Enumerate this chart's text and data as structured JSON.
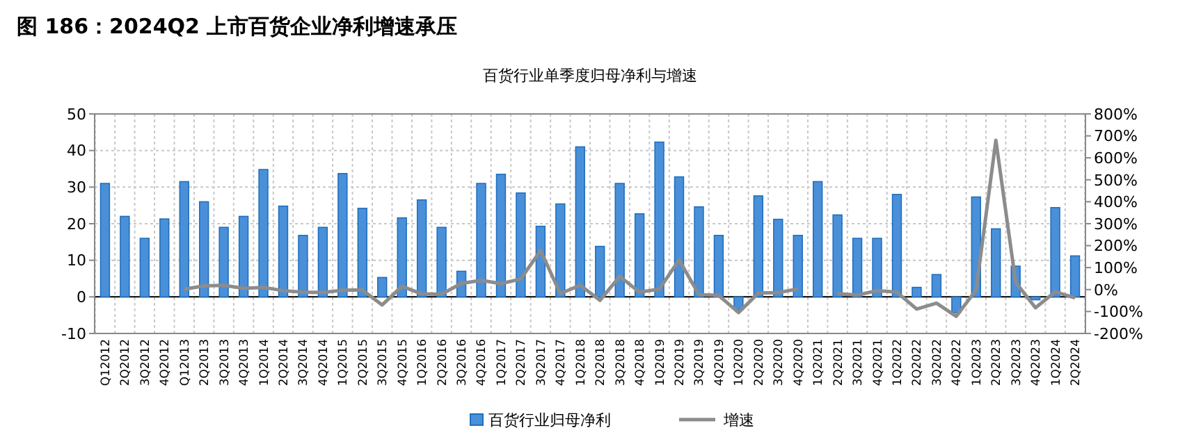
{
  "chart_data": {
    "type": "bar",
    "title": "图 186：2024Q2 上市百货企业净利增速承压",
    "subtitle": "百货行业单季度归母净利与增速",
    "categories": [
      "Q12012",
      "2Q2012",
      "3Q2012",
      "4Q2012",
      "Q12013",
      "2Q2013",
      "3Q2013",
      "4Q2013",
      "1Q2014",
      "2Q2014",
      "3Q2014",
      "4Q2014",
      "1Q2015",
      "2Q2015",
      "3Q2015",
      "4Q2015",
      "1Q2016",
      "2Q2016",
      "3Q2016",
      "4Q2016",
      "1Q2017",
      "2Q2017",
      "3Q2017",
      "4Q2017",
      "1Q2018",
      "2Q2018",
      "3Q2018",
      "4Q2018",
      "1Q2019",
      "2Q2019",
      "3Q2019",
      "4Q2019",
      "1Q2020",
      "2Q2020",
      "3Q2020",
      "4Q2020",
      "1Q2021",
      "2Q2021",
      "3Q2021",
      "4Q2021",
      "1Q2022",
      "2Q2022",
      "3Q2022",
      "4Q2022",
      "1Q2023",
      "2Q2023",
      "3Q2023",
      "4Q2023",
      "1Q2024",
      "2Q2024"
    ],
    "series": [
      {
        "name": "百货行业归母净利",
        "color": "#4a90d9",
        "values": [
          31,
          22,
          16,
          21.3,
          31.5,
          26,
          19,
          22,
          34.8,
          24.8,
          16.8,
          19,
          33.7,
          24.2,
          5.3,
          21.6,
          26.5,
          19,
          7,
          31,
          33.5,
          28.4,
          19.3,
          25.4,
          41,
          13.8,
          31,
          22.7,
          42.3,
          32.8,
          24.6,
          16.8,
          -3.5,
          27.6,
          21.2,
          16.8,
          31.5,
          22.4,
          16,
          16,
          28,
          2.6,
          6.1,
          -4.3,
          27.3,
          18.6,
          8.4,
          -0.8,
          24.4,
          11.2
        ]
      },
      {
        "name": "增速",
        "type": "line",
        "axis": "y2",
        "color": "#8c8c8c",
        "values": [
          null,
          null,
          null,
          null,
          2,
          17,
          19,
          6,
          10,
          -5,
          -12,
          -13,
          -3,
          -2,
          -70,
          15,
          -20,
          -21,
          28,
          42,
          27,
          48,
          178,
          -19,
          20,
          -49,
          60,
          -12,
          2,
          135,
          -23,
          -27,
          -105,
          -16,
          -14,
          3,
          null,
          -19,
          -25,
          -5,
          -12,
          -89,
          -62,
          -122,
          -2,
          680,
          33,
          -83,
          -10,
          -38
        ]
      }
    ],
    "ylim": [
      -10,
      50
    ],
    "yticks": [
      -10,
      0,
      10,
      20,
      30,
      40,
      50
    ],
    "y2lim": [
      -200,
      800
    ],
    "y2ticks": [
      {
        "value": -200,
        "label": "-200%"
      },
      {
        "value": -100,
        "label": "-100%"
      },
      {
        "value": 0,
        "label": "0%"
      },
      {
        "value": 100,
        "label": "100%"
      },
      {
        "value": 200,
        "label": "200%"
      },
      {
        "value": 300,
        "label": "300%"
      },
      {
        "value": 400,
        "label": "400%"
      },
      {
        "value": 500,
        "label": "500%"
      },
      {
        "value": 600,
        "label": "600%"
      },
      {
        "value": 700,
        "label": "700%"
      },
      {
        "value": 800,
        "label": "800%"
      }
    ],
    "grid": true,
    "legend": "bottom",
    "marker": "none",
    "line_style": "solid"
  }
}
